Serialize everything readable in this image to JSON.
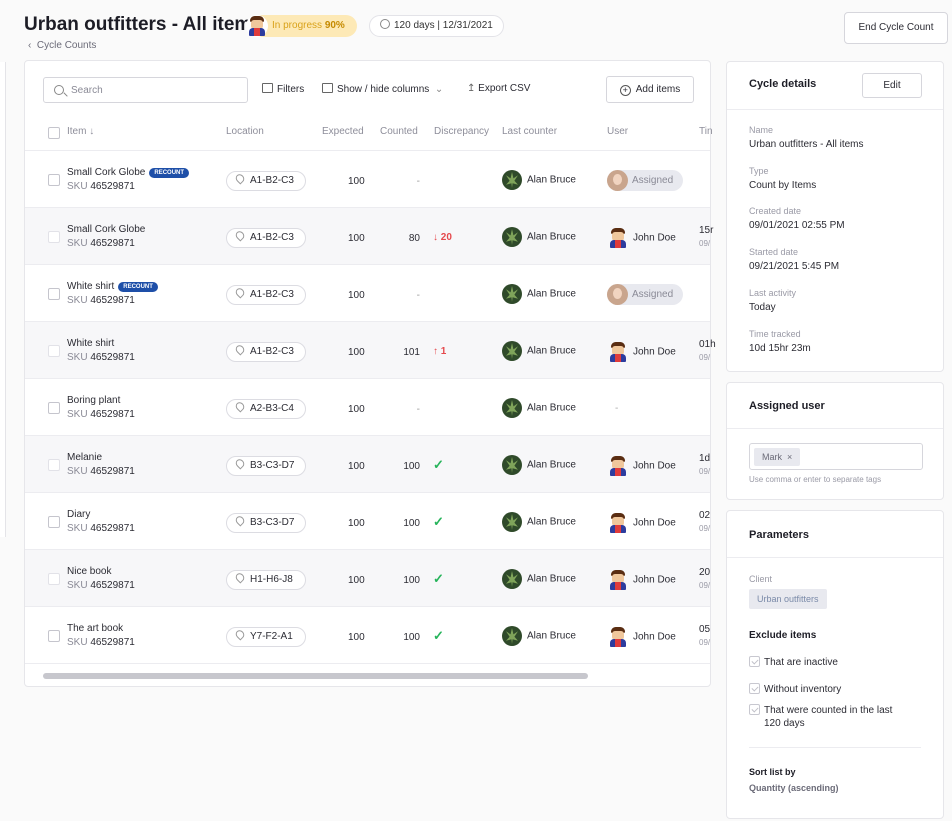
{
  "header": {
    "title": "Urban outfitters - All items",
    "status": "In progress",
    "progress_label": "90%",
    "progress_value": 0.9,
    "days_info": "120 days",
    "date_separator": "|",
    "end_date": "12/31/2021",
    "back_link": "Cycle Counts",
    "end_button": "End Cycle Count"
  },
  "toolbar": {
    "search_placeholder": "Search",
    "filters": "Filters",
    "show_hide": "Show / hide columns",
    "export": "Export CSV",
    "add_items": "Add items"
  },
  "columns": {
    "item": "Item",
    "location": "Location",
    "expected": "Expected",
    "counted": "Counted",
    "discrepancy": "Discrepancy",
    "last_counter": "Last counter",
    "user": "User",
    "time": "Tin"
  },
  "rows": [
    {
      "name": "Small Cork Globe",
      "recount": "RECOUNT",
      "sku_label": "SKU",
      "sku": "46529871",
      "location": "A1-B2-C3",
      "expected": "100",
      "counted": "-",
      "discrepancy": "",
      "disc_type": "none",
      "last_counter": "Alan Bruce",
      "user": "Assigned",
      "user_type": "assigned",
      "time": "",
      "time_sub": ""
    },
    {
      "name": "Small Cork Globe",
      "recount": "",
      "sku_label": "SKU",
      "sku": "46529871",
      "location": "A1-B2-C3",
      "expected": "100",
      "counted": "80",
      "discrepancy": "↓ 20",
      "disc_type": "red",
      "last_counter": "Alan Bruce",
      "user": "John Doe",
      "user_type": "user",
      "time": "15r",
      "time_sub": "09/"
    },
    {
      "name": "White shirt",
      "recount": "RECOUNT",
      "sku_label": "SKU",
      "sku": "46529871",
      "location": "A1-B2-C3",
      "expected": "100",
      "counted": "-",
      "discrepancy": "",
      "disc_type": "none",
      "last_counter": "Alan Bruce",
      "user": "Assigned",
      "user_type": "assigned",
      "time": "",
      "time_sub": ""
    },
    {
      "name": "White shirt",
      "recount": "",
      "sku_label": "SKU",
      "sku": "46529871",
      "location": "A1-B2-C3",
      "expected": "100",
      "counted": "101",
      "discrepancy": "↑ 1",
      "disc_type": "red",
      "last_counter": "Alan Bruce",
      "user": "John Doe",
      "user_type": "user",
      "time": "01h",
      "time_sub": "09/"
    },
    {
      "name": "Boring plant",
      "recount": "",
      "sku_label": "SKU",
      "sku": "46529871",
      "location": "A2-B3-C4",
      "expected": "100",
      "counted": "-",
      "discrepancy": "",
      "disc_type": "none",
      "last_counter": "Alan Bruce",
      "user": "-",
      "user_type": "dash",
      "time": "",
      "time_sub": ""
    },
    {
      "name": "Melanie",
      "recount": "",
      "sku_label": "SKU",
      "sku": "46529871",
      "location": "B3-C3-D7",
      "expected": "100",
      "counted": "100",
      "discrepancy": "✓",
      "disc_type": "green",
      "last_counter": "Alan Bruce",
      "user": "John Doe",
      "user_type": "user",
      "time": "1d",
      "time_sub": "09/"
    },
    {
      "name": "Diary",
      "recount": "",
      "sku_label": "SKU",
      "sku": "46529871",
      "location": "B3-C3-D7",
      "expected": "100",
      "counted": "100",
      "discrepancy": "✓",
      "disc_type": "green",
      "last_counter": "Alan Bruce",
      "user": "John Doe",
      "user_type": "user",
      "time": "02",
      "time_sub": "09/"
    },
    {
      "name": "Nice book",
      "recount": "",
      "sku_label": "SKU",
      "sku": "46529871",
      "location": "H1-H6-J8",
      "expected": "100",
      "counted": "100",
      "discrepancy": "✓",
      "disc_type": "green",
      "last_counter": "Alan Bruce",
      "user": "John Doe",
      "user_type": "user",
      "time": "20",
      "time_sub": "09/"
    },
    {
      "name": "The art book",
      "recount": "",
      "sku_label": "SKU",
      "sku": "46529871",
      "location": "Y7-F2-A1",
      "expected": "100",
      "counted": "100",
      "discrepancy": "✓",
      "disc_type": "green",
      "last_counter": "Alan Bruce",
      "user": "John Doe",
      "user_type": "user",
      "time": "05",
      "time_sub": "09/"
    }
  ],
  "cycle_details": {
    "title": "Cycle details",
    "edit": "Edit",
    "fields": [
      {
        "label": "Name",
        "value": "Urban outfitters - All items"
      },
      {
        "label": "Type",
        "value": "Count by Items"
      },
      {
        "label": "Created date",
        "value": "09/01/2021 02:55 PM"
      },
      {
        "label": "Started date",
        "value": "09/21/2021 5:45 PM"
      },
      {
        "label": "Last activity",
        "value": "Today"
      },
      {
        "label": "Time tracked",
        "value": "10d  15hr  23m"
      }
    ]
  },
  "assigned_user": {
    "title": "Assigned user",
    "tag": "Mark",
    "tag_remove": "×",
    "help": "Use comma or enter to separate tags"
  },
  "parameters": {
    "title": "Parameters",
    "client_label": "Client",
    "client": "Urban outfitters",
    "exclude_title": "Exclude items",
    "exclude": [
      "That are inactive",
      "Without inventory",
      "That were counted in the last",
      "120 days"
    ],
    "sort_title": "Sort list by",
    "sort_value": "Quantity (ascending)"
  },
  "colors": {
    "accent": "#1e4fa8",
    "progress_bg": "#fde9b6",
    "error": "#e5494d",
    "success": "#27b45b"
  }
}
